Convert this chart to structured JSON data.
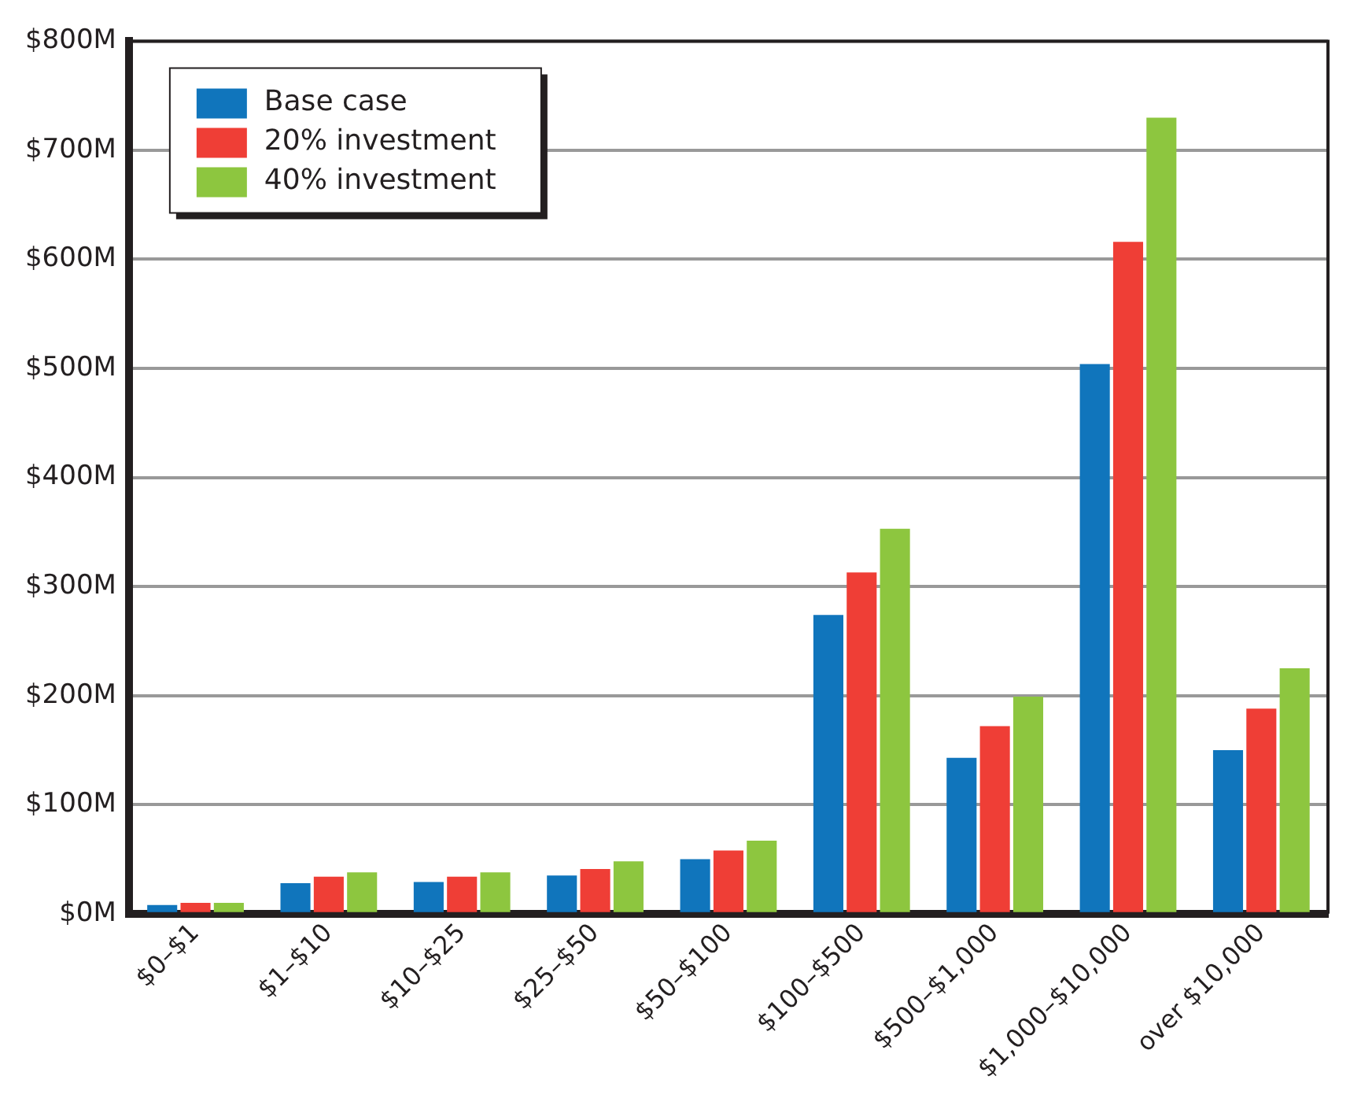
{
  "chart_data": {
    "type": "bar",
    "categories": [
      "$0–$1",
      "$1–$10",
      "$10–$25",
      "$25–$50",
      "$50–$100",
      "$100–$500",
      "$500–$1,000",
      "$1,000–$10,000",
      "over $10,000"
    ],
    "series": [
      {
        "name": "Base case",
        "color": "#1075bc",
        "values": [
          8,
          28,
          29,
          35,
          50,
          274,
          143,
          504,
          150
        ]
      },
      {
        "name": "20% investment",
        "color": "#ef3e36",
        "values": [
          10,
          34,
          34,
          41,
          58,
          313,
          172,
          616,
          188
        ]
      },
      {
        "name": "40% investment",
        "color": "#8dc63f",
        "values": [
          10,
          38,
          38,
          48,
          67,
          353,
          199,
          730,
          225
        ]
      }
    ],
    "ylim": [
      0,
      800
    ],
    "yticks": [
      {
        "value": 0,
        "label": "$0M"
      },
      {
        "value": 100,
        "label": "$100M"
      },
      {
        "value": 200,
        "label": "$200M"
      },
      {
        "value": 300,
        "label": "$300M"
      },
      {
        "value": 400,
        "label": "$400M"
      },
      {
        "value": 500,
        "label": "$500M"
      },
      {
        "value": 600,
        "label": "$600M"
      },
      {
        "value": 700,
        "label": "$700M"
      },
      {
        "value": 800,
        "label": "$800M"
      }
    ],
    "grid": "y",
    "legend": "top left"
  }
}
